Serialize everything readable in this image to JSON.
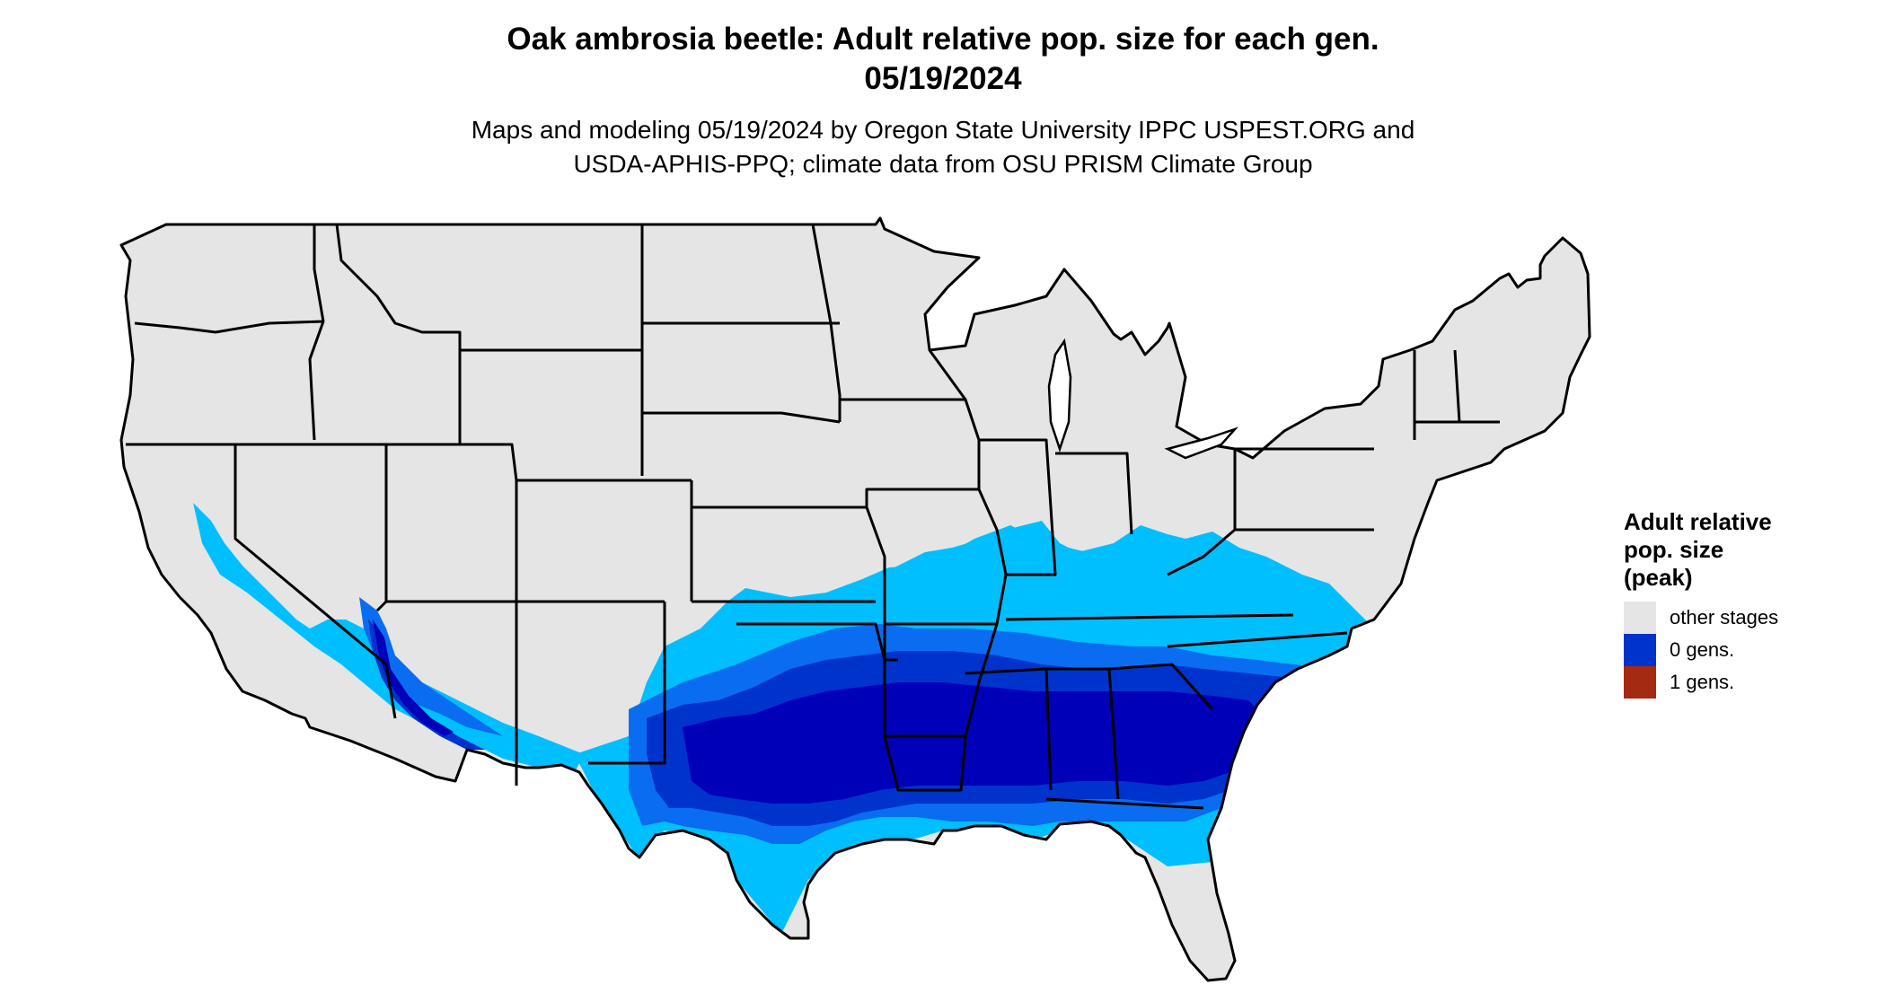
{
  "title": {
    "line1": "Oak ambrosia beetle: Adult relative pop. size for each gen.",
    "line2": "05/19/2024"
  },
  "subtitle": {
    "line1": "Maps and modeling 05/19/2024 by Oregon State University IPPC USPEST.ORG and",
    "line2": "USDA-APHIS-PPQ; climate data from OSU PRISM Climate Group"
  },
  "legend": {
    "title_lines": [
      "Adult relative",
      "pop. size",
      "(peak)"
    ],
    "items": [
      {
        "label": "other stages",
        "color": "#e5e5e5"
      },
      {
        "label": "0 gens.",
        "color": "#0033cc"
      },
      {
        "label": "1 gens.",
        "color": "#a52a12"
      }
    ]
  },
  "colors": {
    "land": "#e5e5e5",
    "light_blue": "#00bfff",
    "mid_blue": "#0a6cf0",
    "blue": "#0033cc",
    "dark_blue": "#0000b8",
    "border": "#000000"
  }
}
